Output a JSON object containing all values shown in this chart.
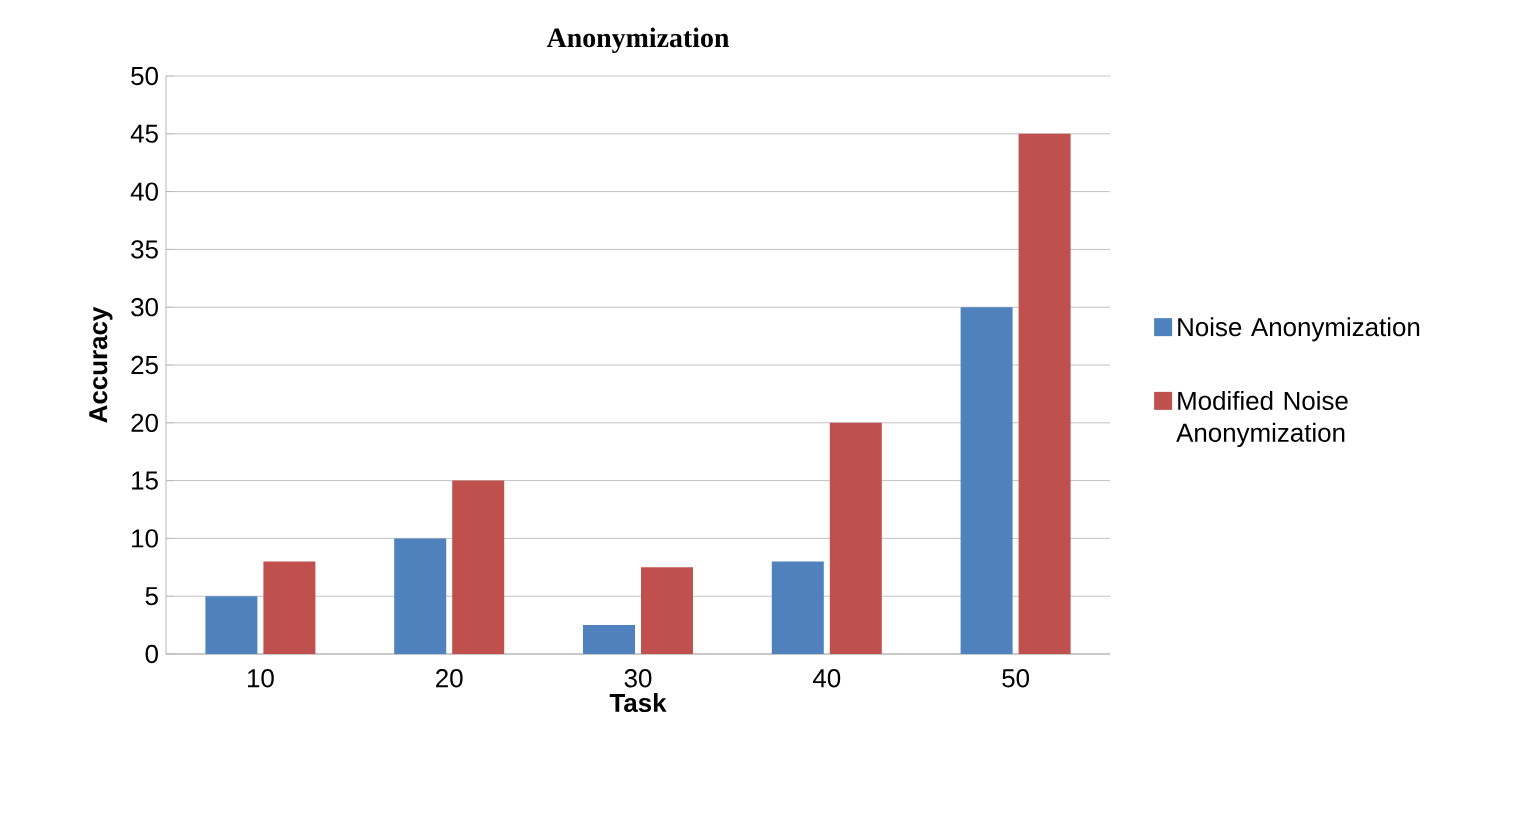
{
  "chart_data": {
    "type": "bar",
    "title": "Anonymization",
    "xlabel": "Task",
    "ylabel": "Accuracy",
    "categories": [
      "10",
      "20",
      "30",
      "40",
      "50"
    ],
    "series": [
      {
        "name": "Noise Anonymization",
        "color": "#4f81bd",
        "values": [
          5,
          10,
          2.5,
          8,
          30
        ]
      },
      {
        "name": "Modified Noise Anonymization",
        "color": "#c0504d",
        "values": [
          8,
          15,
          7.5,
          20,
          45
        ]
      }
    ],
    "ylim": [
      0,
      50
    ],
    "yticks": [
      0,
      5,
      10,
      15,
      20,
      25,
      30,
      35,
      40,
      45,
      50
    ],
    "grid": "y",
    "legend": "right"
  }
}
